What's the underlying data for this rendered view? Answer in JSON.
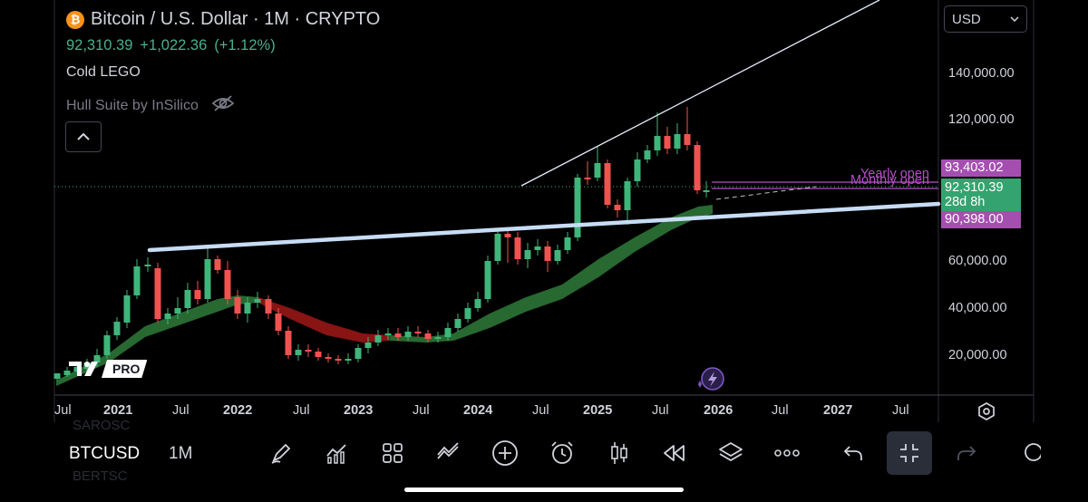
{
  "header": {
    "coin_icon": "bitcoin-icon",
    "symbol_title": "Bitcoin / U.S. Dollar · 1M · CRYPTO",
    "last_price": "92,310.39",
    "change": "+1,022.36",
    "change_pct": "(+1.12%)",
    "indicator_1": "Cold LEGO",
    "indicator_2": "Hull Suite by InSilico",
    "hide_icon": "eye-off-icon",
    "collapse_icon": "chevron-up-icon"
  },
  "currency_select": {
    "value": "USD"
  },
  "price_axis": {
    "labels": [
      "140,000.00",
      "120,000.00",
      "60,000.00",
      "40,000.00",
      "20,000.00"
    ],
    "badges": {
      "yearly_open": "93,403.02",
      "current_price": "92,310.39",
      "countdown": "28d 8h",
      "low_level": "90,398.00"
    }
  },
  "annotations": {
    "yearly_open": "Yearly open",
    "monthly_open": "Monthly open"
  },
  "time_axis": {
    "labels": [
      {
        "text": "Jul",
        "bold": false
      },
      {
        "text": "2021",
        "bold": true
      },
      {
        "text": "Jul",
        "bold": false
      },
      {
        "text": "2022",
        "bold": true
      },
      {
        "text": "Jul",
        "bold": false
      },
      {
        "text": "2023",
        "bold": true
      },
      {
        "text": "Jul",
        "bold": false
      },
      {
        "text": "2024",
        "bold": true
      },
      {
        "text": "Jul",
        "bold": false
      },
      {
        "text": "2025",
        "bold": true
      },
      {
        "text": "Jul",
        "bold": false
      },
      {
        "text": "2026",
        "bold": true
      },
      {
        "text": "Jul",
        "bold": false
      },
      {
        "text": "2027",
        "bold": true
      },
      {
        "text": "Jul",
        "bold": false
      }
    ]
  },
  "watermark": {
    "pro": "PRO"
  },
  "toolbar": {
    "symbol": "BTCUSD",
    "interval": "1M",
    "ghost_above": "SAROSC",
    "ghost_below": "BERTSC",
    "buttons": [
      "draw-icon",
      "indicators-icon",
      "layout-grid-icon",
      "compare-icon",
      "add-icon",
      "alert-clock-icon",
      "candles-icon",
      "replay-icon",
      "layers-icon",
      "more-icon",
      "undo-icon",
      "collapse-icon",
      "redo-icon"
    ]
  },
  "colors": {
    "up": "#26a69a",
    "up_candle": "#3fb57a",
    "down": "#ef5350",
    "hull_up": "#2e7d32",
    "hull_down": "#b71c1c",
    "trendline": "#cfe3ff",
    "level": "#b44fc6",
    "background": "#000000"
  }
}
